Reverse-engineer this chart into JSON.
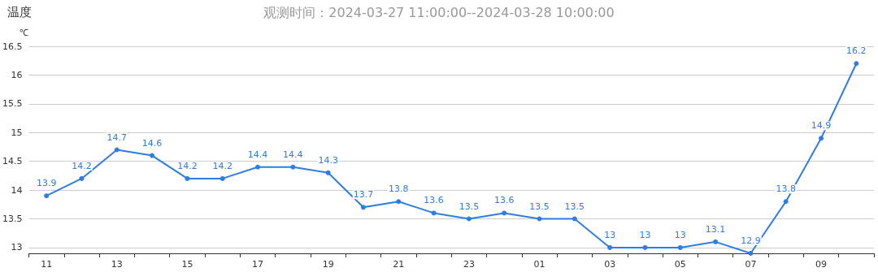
{
  "chart_data": {
    "type": "line",
    "title": "温度",
    "subtitle": "观测时间：2024-03-27 11:00:00--2024-03-28 10:00:00",
    "ylabel": "℃",
    "categories": [
      "11",
      null,
      "13",
      null,
      "15",
      null,
      "17",
      null,
      "19",
      null,
      "21",
      null,
      "23",
      null,
      "01",
      null,
      "03",
      null,
      "05",
      null,
      "07",
      null,
      "09",
      null
    ],
    "series": [
      {
        "color": "#2f7de1",
        "values": [
          13.9,
          14.2,
          14.7,
          14.6,
          14.2,
          14.2,
          14.4,
          14.4,
          14.3,
          13.7,
          13.8,
          13.6,
          13.5,
          13.6,
          13.5,
          13.5,
          13,
          13,
          13,
          13.1,
          12.9,
          13.8,
          14.9,
          16.2
        ]
      }
    ],
    "ylim": [
      12.9,
      16.5
    ],
    "yticks": [
      13,
      13.5,
      14,
      14.5,
      15,
      15.5,
      16,
      16.5
    ],
    "grid": "y",
    "marker": "circle",
    "line_style": "solid",
    "data_labels": true
  }
}
